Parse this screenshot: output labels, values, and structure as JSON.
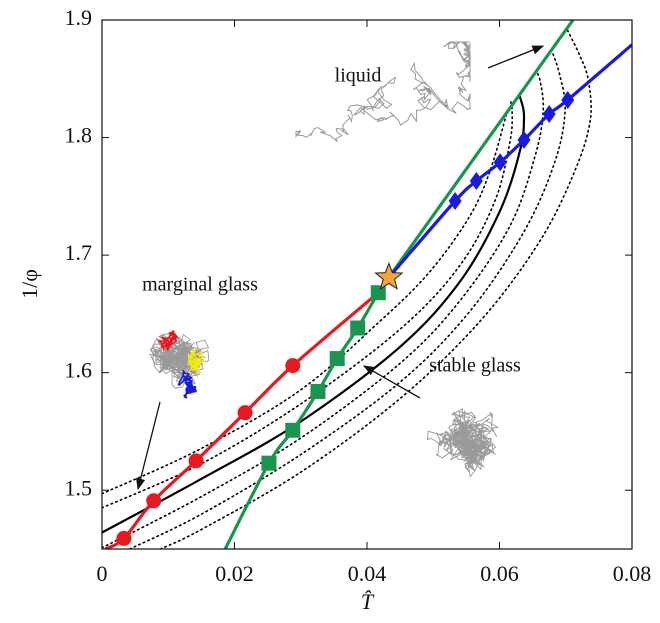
{
  "chart_data": {
    "type": "line",
    "xlabel": "T̂",
    "ylabel": "1/φ",
    "xlim": [
      0,
      0.08
    ],
    "ylim": [
      1.45,
      1.9
    ],
    "xticks": [
      0,
      0.02,
      0.04,
      0.06,
      0.08
    ],
    "yticks": [
      1.5,
      1.6,
      1.7,
      1.8,
      1.9
    ],
    "grid": false,
    "annotations": [
      "liquid",
      "marginal glass",
      "stable glass"
    ],
    "series": [
      {
        "color": "#000000",
        "line_style": "dotted",
        "marker": "none",
        "x": [
          0,
          0.0148,
          0.0299,
          0.042,
          0.0495,
          0.0555,
          0.0586,
          0.0611
        ],
        "values": [
          1.497,
          1.535,
          1.585,
          1.644,
          1.686,
          1.733,
          1.772,
          1.821
        ]
      },
      {
        "color": "#000000",
        "line_style": "dotted",
        "marker": "none",
        "x": [
          0,
          0.0148,
          0.0299,
          0.045,
          0.054,
          0.0593,
          0.0616,
          0.0619,
          0.0616
        ],
        "values": [
          1.485,
          1.522,
          1.573,
          1.637,
          1.691,
          1.746,
          1.797,
          1.823,
          1.832
        ]
      },
      {
        "color": "#000000",
        "line_style": "dotted",
        "marker": "none",
        "x": [
          0,
          0.0148,
          0.0299,
          0.045,
          0.054,
          0.0616,
          0.0654,
          0.0666,
          0.0661,
          0.0655
        ],
        "values": [
          1.451,
          1.494,
          1.544,
          1.608,
          1.661,
          1.725,
          1.785,
          1.823,
          1.849,
          1.856
        ]
      },
      {
        "color": "#000000",
        "line_style": "dotted",
        "marker": "none",
        "x": [
          0.0042,
          0.0148,
          0.0299,
          0.045,
          0.0555,
          0.0638,
          0.0684,
          0.0699,
          0.0691,
          0.0679
        ],
        "values": [
          1.45,
          1.479,
          1.53,
          1.592,
          1.652,
          1.721,
          1.78,
          1.823,
          1.853,
          1.874
        ]
      },
      {
        "color": "#000000",
        "line_style": "dotted",
        "marker": "none",
        "x": [
          0.0088,
          0.0148,
          0.0299,
          0.045,
          0.0571,
          0.0661,
          0.0714,
          0.0737,
          0.0734,
          0.0721,
          0.0703
        ],
        "values": [
          1.45,
          1.466,
          1.515,
          1.578,
          1.644,
          1.712,
          1.772,
          1.815,
          1.849,
          1.87,
          1.891
        ]
      },
      {
        "color": "#000000",
        "line_style": "solid",
        "marker": "none",
        "x": [
          0,
          0.0148,
          0.0299,
          0.045,
          0.0541,
          0.0601,
          0.0631,
          0.0637,
          0.063
        ],
        "values": [
          1.464,
          1.509,
          1.558,
          1.622,
          1.678,
          1.738,
          1.789,
          1.819,
          1.836
        ]
      },
      {
        "color": "#1a9550",
        "line_style": "solid",
        "marker": "none",
        "x": [
          0.0186,
          0.0252,
          0.0288,
          0.0326,
          0.0355,
          0.0386,
          0.0417,
          0.0433,
          0.0711
        ],
        "values": [
          1.45,
          1.523,
          1.551,
          1.584,
          1.612,
          1.638,
          1.668,
          1.681,
          1.9
        ]
      },
      {
        "color": "#e8191e",
        "line_style": "solid",
        "marker": "none",
        "x": [
          0.0005,
          0.0033,
          0.0078,
          0.0142,
          0.0216,
          0.0288,
          0.0417
        ],
        "values": [
          1.45,
          1.459,
          1.491,
          1.525,
          1.566,
          1.606,
          1.668
        ]
      },
      {
        "color": "#1a1adc",
        "line_style": "solid",
        "marker": "none",
        "x": [
          0.0433,
          0.0533,
          0.0565,
          0.0601,
          0.0637,
          0.0675,
          0.0703,
          0.08
        ],
        "values": [
          1.681,
          1.746,
          1.763,
          1.779,
          1.798,
          1.82,
          1.832,
          1.879
        ]
      },
      {
        "color": "#e8191e",
        "line_style": "none",
        "marker": "circle",
        "x": [
          0.0033,
          0.0078,
          0.0142,
          0.0216,
          0.0288
        ],
        "values": [
          1.459,
          1.491,
          1.525,
          1.566,
          1.606
        ]
      },
      {
        "color": "#1a9550",
        "line_style": "none",
        "marker": "square",
        "x": [
          0.0252,
          0.0288,
          0.0326,
          0.0355,
          0.0386,
          0.0417
        ],
        "values": [
          1.523,
          1.551,
          1.584,
          1.612,
          1.638,
          1.668
        ]
      },
      {
        "color": "#1a1adc",
        "line_style": "none",
        "marker": "diamond",
        "x": [
          0.0533,
          0.0565,
          0.0601,
          0.0637,
          0.0675,
          0.0703
        ],
        "values": [
          1.746,
          1.763,
          1.779,
          1.798,
          1.82,
          1.832
        ]
      },
      {
        "color": "#f4a53a",
        "line_style": "none",
        "marker": "star",
        "x": [
          0.0433
        ],
        "values": [
          1.681
        ]
      }
    ]
  }
}
